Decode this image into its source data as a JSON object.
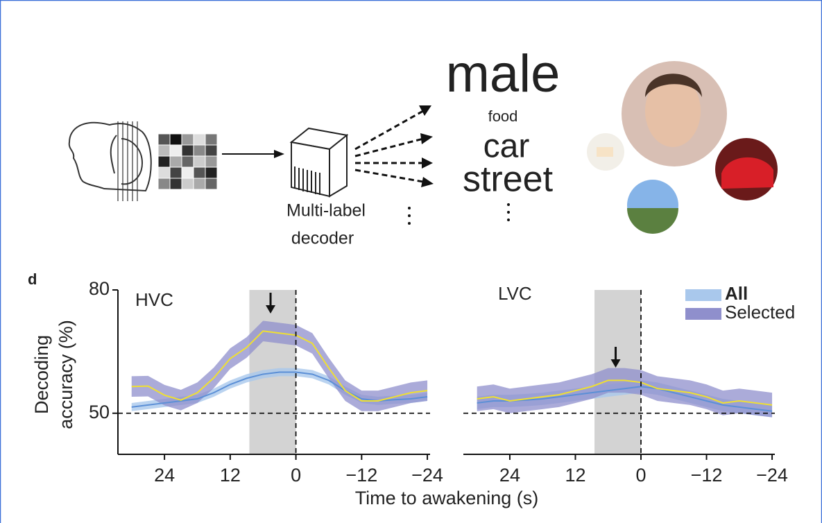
{
  "diagram": {
    "decoder_label": [
      "Multi-label",
      "decoder"
    ],
    "words": [
      "male",
      "food",
      "car",
      "street"
    ]
  },
  "panel_label": "d",
  "chart_data": [
    {
      "type": "line",
      "title": "HVC",
      "ylabel": [
        "Decoding",
        "accuracy (%)"
      ],
      "xlabel": "Time to awakening (s)",
      "x": [
        30,
        27,
        24,
        21,
        18,
        15,
        12,
        9,
        6,
        3,
        0,
        -3,
        -6,
        -9,
        -12,
        -15,
        -18,
        -21,
        -24
      ],
      "xlim": [
        32.5,
        -24.5
      ],
      "ylim": [
        40,
        80
      ],
      "xticks": [
        24,
        12,
        0,
        {
          "value": -12,
          "label": "−12"
        },
        {
          "value": -24,
          "label": "−24"
        }
      ],
      "yticks": [
        50,
        80
      ],
      "hline": 50,
      "vline": 0,
      "shade": [
        8.5,
        0
      ],
      "series": [
        {
          "color": "#a9c8ec",
          "line_color": "#5b8fd6",
          "values": [
            51.5,
            52,
            52.5,
            53,
            53.5,
            55,
            57,
            58.5,
            59.5,
            60,
            60,
            59.5,
            58,
            55.5,
            53.5,
            53,
            53.3,
            53.5,
            54
          ],
          "errors": [
            1,
            1,
            1,
            1,
            1,
            1,
            1,
            1,
            1,
            1,
            1,
            1,
            1,
            1,
            1,
            1,
            1,
            1,
            1
          ]
        },
        {
          "color": "#8f8fcc",
          "line_color": "#f0e030",
          "values": [
            56.5,
            56.6,
            54.4,
            53.2,
            55,
            58.6,
            63.3,
            66,
            70,
            69.5,
            69,
            67,
            61,
            55.5,
            53,
            53,
            54,
            55,
            55.5
          ],
          "errors": [
            2.5,
            2.5,
            2.5,
            2.5,
            2.5,
            2.5,
            2.5,
            2.5,
            2.5,
            2.5,
            2.5,
            2.5,
            2.5,
            2.5,
            2.5,
            2.5,
            2.5,
            2.5,
            2.5
          ]
        }
      ]
    },
    {
      "type": "line",
      "title": "LVC",
      "legend": "upper right",
      "x": [
        30,
        27,
        24,
        21,
        18,
        15,
        12,
        9,
        6,
        3,
        0,
        -3,
        -6,
        -9,
        -12,
        -15,
        -18,
        -21,
        -24
      ],
      "xlim": [
        32.5,
        -24.5
      ],
      "ylim": [
        40,
        80
      ],
      "xticks": [
        24,
        12,
        0,
        {
          "value": -12,
          "label": "−12"
        },
        {
          "value": -24,
          "label": "−24"
        }
      ],
      "hline": 50,
      "vline": 0,
      "shade": [
        8.5,
        0
      ],
      "series": [
        {
          "name": "All",
          "color": "#a9c8ec",
          "line_color": "#5b8fd6",
          "values": [
            52.5,
            53,
            53,
            53.2,
            53.5,
            54,
            54.5,
            55,
            55.5,
            56,
            56.5,
            56,
            55,
            54,
            53,
            52,
            51.5,
            51,
            50.5
          ],
          "errors": [
            1.5,
            1.5,
            1.5,
            1.5,
            1.5,
            1.5,
            1.5,
            1.5,
            1.5,
            1.5,
            1.5,
            1.5,
            1.5,
            1.5,
            1.5,
            1.5,
            1.5,
            1.5,
            1.5
          ]
        },
        {
          "name": "Selected",
          "color": "#8f8fcc",
          "line_color": "#f0e030",
          "values": [
            53.5,
            54,
            53,
            53.5,
            54,
            54.5,
            55.5,
            56.5,
            58,
            58,
            57.5,
            56,
            55.5,
            55,
            54,
            52.5,
            53,
            52.5,
            52
          ],
          "errors": [
            3,
            3,
            3,
            3,
            3,
            3,
            3,
            3,
            3,
            3,
            3,
            3,
            3,
            3,
            3,
            3,
            3,
            3,
            3
          ]
        }
      ]
    }
  ]
}
